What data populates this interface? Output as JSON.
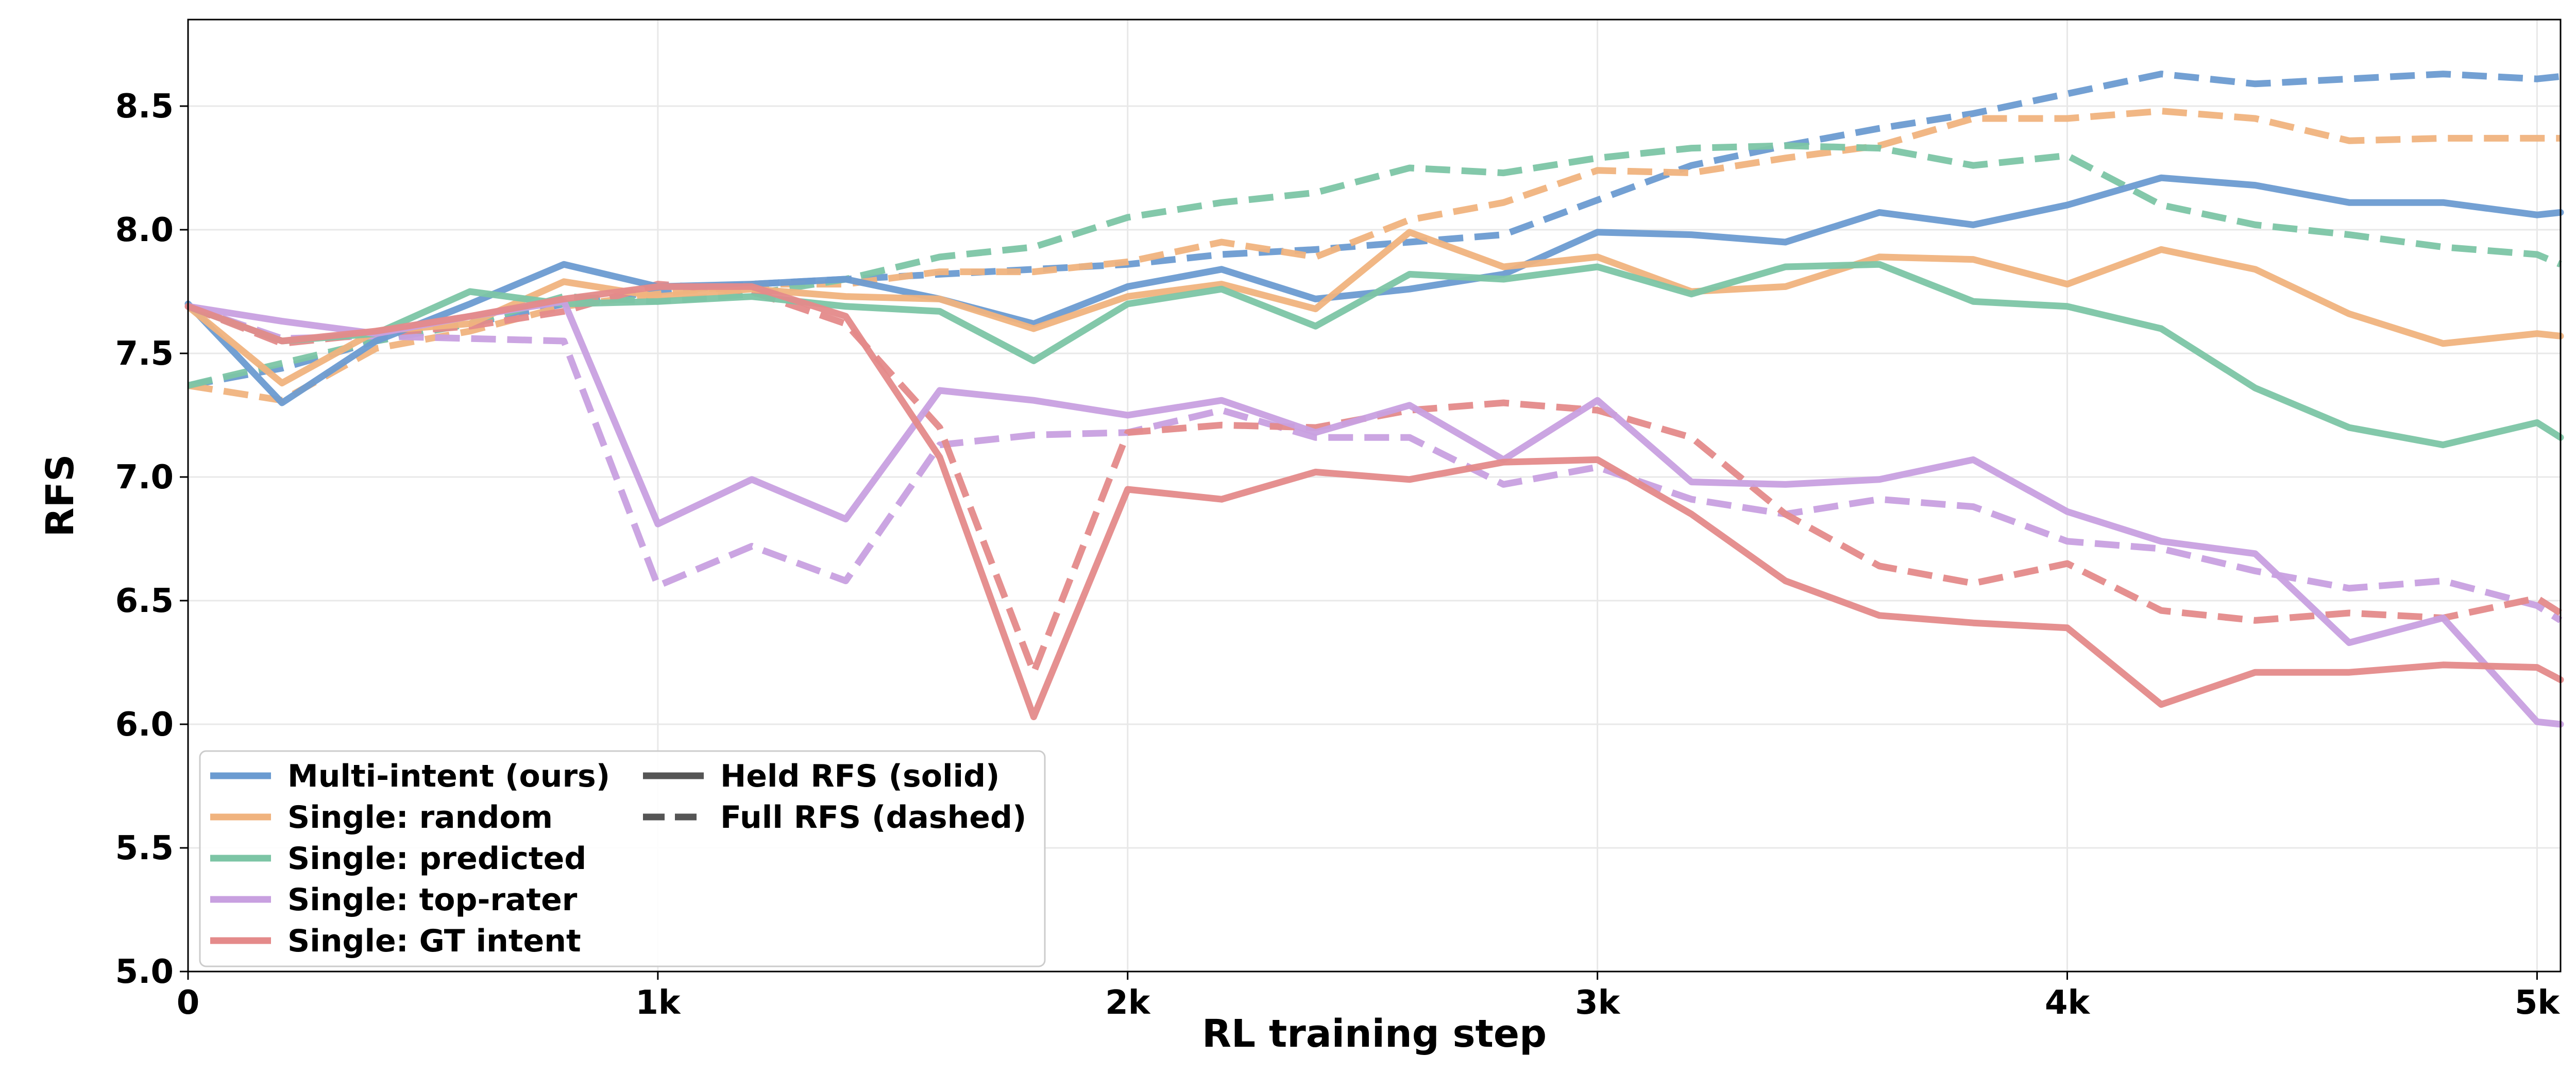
{
  "chart_data": {
    "type": "line",
    "title": "",
    "xlabel": "RL training step",
    "ylabel": "RFS",
    "xlim": [
      0,
      5050
    ],
    "ylim": [
      5.0,
      8.85
    ],
    "grid": true,
    "x_ticks": [
      {
        "value": 0,
        "label": "0"
      },
      {
        "value": 1000,
        "label": "1k"
      },
      {
        "value": 2000,
        "label": "2k"
      },
      {
        "value": 3000,
        "label": "3k"
      },
      {
        "value": 4000,
        "label": "4k"
      },
      {
        "value": 5000,
        "label": "5k"
      }
    ],
    "y_ticks": [
      {
        "value": 5.0,
        "label": "5.0"
      },
      {
        "value": 5.5,
        "label": "5.5"
      },
      {
        "value": 6.0,
        "label": "6.0"
      },
      {
        "value": 6.5,
        "label": "6.5"
      },
      {
        "value": 7.0,
        "label": "7.0"
      },
      {
        "value": 7.5,
        "label": "7.5"
      },
      {
        "value": 8.0,
        "label": "8.0"
      },
      {
        "value": 8.5,
        "label": "8.5"
      }
    ],
    "legend_position": "bottom-left",
    "legend": {
      "series_entries": [
        {
          "label": "Multi-intent (ours)",
          "color": "#6b9bd1"
        },
        {
          "label": "Single: random",
          "color": "#f0b37e"
        },
        {
          "label": "Single: predicted",
          "color": "#7cc5a5"
        },
        {
          "label": "Single: top-rater",
          "color": "#c8a0e0"
        },
        {
          "label": "Single: GT intent",
          "color": "#e48a8a"
        }
      ],
      "style_entries": [
        {
          "label": "Held RFS (solid)",
          "dash": "solid",
          "color": "#555555"
        },
        {
          "label": "Full RFS (dashed)",
          "dash": "dashed",
          "color": "#555555"
        }
      ]
    },
    "x": [
      0,
      200,
      400,
      600,
      800,
      1000,
      1200,
      1400,
      1600,
      1800,
      2000,
      2200,
      2400,
      2600,
      2800,
      3000,
      3200,
      3400,
      3600,
      3800,
      4000,
      4200,
      4400,
      4600,
      4800,
      5000,
      5050
    ],
    "series": [
      {
        "name": "Multi-intent (ours)",
        "style": "solid",
        "color": "#6b9bd1",
        "values": [
          7.7,
          7.3,
          7.55,
          7.7,
          7.86,
          7.77,
          7.78,
          7.8,
          7.72,
          7.62,
          7.77,
          7.84,
          7.72,
          7.76,
          7.82,
          7.99,
          7.98,
          7.95,
          8.07,
          8.02,
          8.1,
          8.21,
          8.18,
          8.11,
          8.11,
          8.06,
          8.07
        ]
      },
      {
        "name": "Single: random",
        "style": "solid",
        "color": "#f0b37e",
        "values": [
          7.69,
          7.38,
          7.59,
          7.62,
          7.79,
          7.73,
          7.76,
          7.73,
          7.72,
          7.6,
          7.73,
          7.78,
          7.68,
          7.99,
          7.85,
          7.89,
          7.75,
          7.77,
          7.89,
          7.88,
          7.78,
          7.92,
          7.84,
          7.66,
          7.54,
          7.58,
          7.57
        ]
      },
      {
        "name": "Single: predicted",
        "style": "solid",
        "color": "#7cc5a5",
        "values": [
          7.69,
          7.55,
          7.58,
          7.75,
          7.7,
          7.71,
          7.73,
          7.69,
          7.67,
          7.47,
          7.7,
          7.76,
          7.61,
          7.82,
          7.8,
          7.85,
          7.74,
          7.85,
          7.86,
          7.71,
          7.69,
          7.6,
          7.36,
          7.2,
          7.13,
          7.22,
          7.16
        ]
      },
      {
        "name": "Single: top-rater",
        "style": "solid",
        "color": "#c8a0e0",
        "values": [
          7.69,
          7.63,
          7.58,
          7.65,
          7.71,
          6.81,
          6.99,
          6.83,
          7.35,
          7.31,
          7.25,
          7.31,
          7.18,
          7.29,
          7.07,
          7.31,
          6.98,
          6.97,
          6.99,
          7.07,
          6.86,
          6.74,
          6.69,
          6.33,
          6.43,
          6.01,
          6.0
        ]
      },
      {
        "name": "Single: GT intent",
        "style": "solid",
        "color": "#e48a8a",
        "values": [
          7.69,
          7.55,
          7.59,
          7.65,
          7.72,
          7.77,
          7.77,
          7.65,
          7.08,
          6.03,
          6.95,
          6.91,
          7.02,
          6.99,
          7.06,
          7.07,
          6.85,
          6.58,
          6.44,
          6.41,
          6.39,
          6.08,
          6.21,
          6.21,
          6.24,
          6.23,
          6.18
        ]
      },
      {
        "name": "Multi-intent (ours)",
        "style": "dashed",
        "color": "#6b9bd1",
        "values": [
          7.37,
          7.44,
          7.55,
          7.62,
          7.7,
          7.75,
          7.78,
          7.8,
          7.82,
          7.84,
          7.86,
          7.9,
          7.92,
          7.95,
          7.98,
          8.12,
          8.26,
          8.34,
          8.41,
          8.47,
          8.55,
          8.63,
          8.59,
          8.61,
          8.63,
          8.61,
          8.62
        ]
      },
      {
        "name": "Single: random",
        "style": "dashed",
        "color": "#f0b37e",
        "values": [
          7.37,
          7.31,
          7.52,
          7.59,
          7.69,
          7.74,
          7.78,
          7.78,
          7.83,
          7.83,
          7.87,
          7.95,
          7.89,
          8.04,
          8.11,
          8.24,
          8.23,
          8.29,
          8.34,
          8.45,
          8.45,
          8.48,
          8.45,
          8.36,
          8.37,
          8.37,
          8.37
        ]
      },
      {
        "name": "Single: predicted",
        "style": "dashed",
        "color": "#7cc5a5",
        "values": [
          7.37,
          7.46,
          7.55,
          7.62,
          7.73,
          7.71,
          7.74,
          7.8,
          7.89,
          7.93,
          8.05,
          8.11,
          8.15,
          8.25,
          8.23,
          8.29,
          8.33,
          8.34,
          8.33,
          8.26,
          8.3,
          8.1,
          8.02,
          7.98,
          7.93,
          7.9,
          7.86
        ]
      },
      {
        "name": "Single: top-rater",
        "style": "dashed",
        "color": "#c8a0e0",
        "values": [
          7.69,
          7.56,
          7.57,
          7.56,
          7.55,
          6.56,
          6.72,
          6.58,
          7.13,
          7.17,
          7.18,
          7.27,
          7.16,
          7.16,
          6.97,
          7.04,
          6.91,
          6.85,
          6.91,
          6.88,
          6.74,
          6.71,
          6.62,
          6.55,
          6.58,
          6.48,
          6.42
        ]
      },
      {
        "name": "Single: GT intent",
        "style": "dashed",
        "color": "#e48a8a",
        "values": [
          7.69,
          7.54,
          7.58,
          7.61,
          7.67,
          7.78,
          7.75,
          7.62,
          7.2,
          6.21,
          7.18,
          7.21,
          7.2,
          7.27,
          7.3,
          7.27,
          7.16,
          6.85,
          6.64,
          6.57,
          6.65,
          6.46,
          6.42,
          6.45,
          6.43,
          6.51,
          6.45
        ]
      }
    ]
  }
}
